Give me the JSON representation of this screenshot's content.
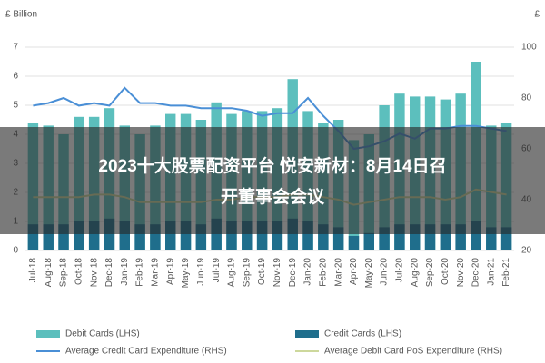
{
  "chart_data": {
    "type": "bar",
    "y_label": "£ Billion",
    "y2_label": "£",
    "categories": [
      "Jul-18",
      "Aug-18",
      "Sep-18",
      "Oct-18",
      "Nov-18",
      "Dec-18",
      "Jan-19",
      "Feb-19",
      "Mar-19",
      "Apr-19",
      "May-19",
      "Jun-19",
      "Jul-19",
      "Aug-19",
      "Sep-19",
      "Oct-19",
      "Nov-19",
      "Dec-19",
      "Jan-20",
      "Feb-20",
      "Mar-20",
      "Apr-20",
      "May-20",
      "Jun-20",
      "Jul-20",
      "Aug-20",
      "Sep-20",
      "Oct-20",
      "Nov-20",
      "Dec-20",
      "Jan-21",
      "Feb-21"
    ],
    "series": [
      {
        "name": "Debit Cards (LHS)",
        "kind": "bar",
        "color": "#5cbfbd",
        "values": [
          4.4,
          4.3,
          4.0,
          4.6,
          4.6,
          4.9,
          4.3,
          4.0,
          4.3,
          4.7,
          4.7,
          4.5,
          5.1,
          4.7,
          4.8,
          4.8,
          4.9,
          5.9,
          4.8,
          4.4,
          4.5,
          3.8,
          4.0,
          5.0,
          5.4,
          5.3,
          5.3,
          5.2,
          5.4,
          6.5,
          4.3,
          4.4
        ]
      },
      {
        "name": "Credit Cards (LHS)",
        "kind": "bar",
        "color": "#1f6e8c",
        "values": [
          0.9,
          0.9,
          0.9,
          1.0,
          1.0,
          1.1,
          1.0,
          0.9,
          0.9,
          1.0,
          1.0,
          0.9,
          1.1,
          1.0,
          1.0,
          1.0,
          1.0,
          1.1,
          1.0,
          0.9,
          0.8,
          0.5,
          0.6,
          0.8,
          0.9,
          0.9,
          0.9,
          0.9,
          0.9,
          1.0,
          0.8,
          0.8
        ]
      },
      {
        "name": "Average Credit Card Expenditure (RHS)",
        "kind": "line",
        "axis": "y2",
        "color": "#4a8fd6",
        "values": [
          77,
          78,
          80,
          77,
          78,
          77,
          84,
          78,
          78,
          77,
          77,
          76,
          76,
          76,
          75,
          73,
          74,
          74,
          80,
          73,
          67,
          60,
          61,
          63,
          66,
          64,
          68,
          68,
          69,
          69,
          68,
          67
        ]
      },
      {
        "name": "Average Debit Card PoS Expenditure (RHS)",
        "kind": "line",
        "axis": "y2",
        "color": "#cdd89c",
        "values": [
          41,
          41,
          41,
          41,
          42,
          42,
          41,
          39,
          39,
          39,
          39,
          39,
          40,
          40,
          41,
          41,
          41,
          42,
          42,
          41,
          40,
          38,
          39,
          40,
          41,
          41,
          41,
          40,
          41,
          44,
          43,
          42
        ]
      }
    ],
    "ylim": [
      0,
      7
    ],
    "yticks": [
      0,
      1,
      2,
      3,
      4,
      5,
      6,
      7
    ],
    "y2lim": [
      20,
      100
    ],
    "y2ticks": [
      20,
      40,
      60,
      80,
      100
    ],
    "grid": true
  },
  "banner": [
    "2023十大股票配资平台 悦安新材：8月14日召",
    "开董事会会议"
  ]
}
